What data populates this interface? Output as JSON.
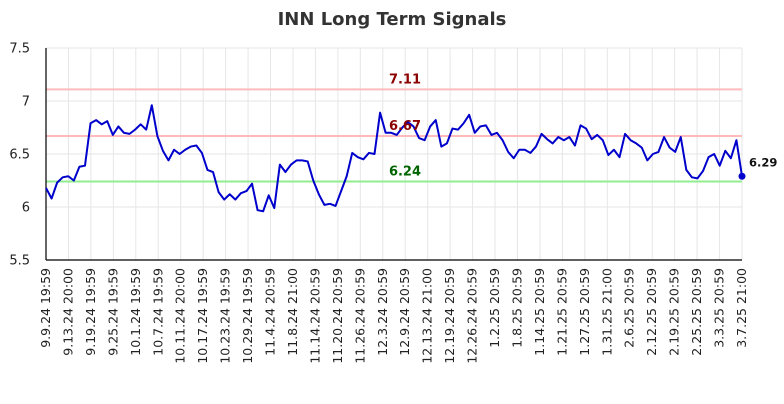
{
  "chart_data": {
    "type": "line",
    "title": "INN Long Term Signals",
    "xlabel": "",
    "ylabel": "",
    "ylim": [
      5.5,
      7.5
    ],
    "yticks": [
      "5.5",
      "6",
      "6.5",
      "7",
      "7.5"
    ],
    "grid": true,
    "x_tick_labels": [
      "9.9.24 19:59",
      "9.13.24 20:00",
      "9.19.24 19:59",
      "9.25.24 19:59",
      "10.1.24 19:59",
      "10.7.24 19:59",
      "10.11.24 20:00",
      "10.17.24 19:59",
      "10.23.24 19:59",
      "10.29.24 19:59",
      "11.4.24 20:59",
      "11.8.24 21:00",
      "11.14.24 20:59",
      "11.20.24 20:59",
      "11.26.24 20:59",
      "12.3.24 20:59",
      "12.9.24 20:59",
      "12.13.24 21:00",
      "12.19.24 20:59",
      "12.26.24 20:59",
      "1.2.25 20:59",
      "1.8.25 20:59",
      "1.14.25 20:59",
      "1.21.25 20:59",
      "1.27.25 20:59",
      "1.31.25 21:00",
      "2.6.25 20:59",
      "2.12.25 20:59",
      "2.19.25 20:59",
      "2.25.25 20:59",
      "3.3.25 20:59",
      "3.7.25 21:00"
    ],
    "reference_lines": [
      {
        "label": "7.11",
        "value": 7.11,
        "color": "#ffbbbb",
        "label_color": "#8b0000"
      },
      {
        "label": "6.67",
        "value": 6.67,
        "color": "#ffbbbb",
        "label_color": "#8b0000"
      },
      {
        "label": "6.24",
        "value": 6.24,
        "color": "#90ee90",
        "label_color": "#006400"
      }
    ],
    "last_value_label": "6.29",
    "series": [
      {
        "color": "#0000cc",
        "values": [
          6.18,
          6.08,
          6.23,
          6.28,
          6.29,
          6.25,
          6.38,
          6.39,
          6.79,
          6.82,
          6.78,
          6.81,
          6.68,
          6.76,
          6.7,
          6.69,
          6.73,
          6.78,
          6.73,
          6.96,
          6.67,
          6.53,
          6.44,
          6.54,
          6.5,
          6.54,
          6.57,
          6.58,
          6.51,
          6.35,
          6.33,
          6.14,
          6.07,
          6.12,
          6.07,
          6.13,
          6.15,
          6.22,
          5.97,
          5.96,
          6.11,
          5.99,
          6.4,
          6.33,
          6.4,
          6.44,
          6.44,
          6.43,
          6.25,
          6.12,
          6.02,
          6.03,
          6.01,
          6.15,
          6.29,
          6.51,
          6.47,
          6.45,
          6.51,
          6.5,
          6.89,
          6.7,
          6.7,
          6.68,
          6.75,
          6.8,
          6.76,
          6.65,
          6.63,
          6.76,
          6.82,
          6.57,
          6.6,
          6.74,
          6.73,
          6.79,
          6.87,
          6.7,
          6.76,
          6.77,
          6.68,
          6.7,
          6.63,
          6.52,
          6.46,
          6.54,
          6.54,
          6.51,
          6.57,
          6.69,
          6.64,
          6.6,
          6.66,
          6.63,
          6.66,
          6.58,
          6.77,
          6.74,
          6.64,
          6.68,
          6.63,
          6.49,
          6.54,
          6.47,
          6.69,
          6.63,
          6.6,
          6.56,
          6.44,
          6.5,
          6.52,
          6.66,
          6.56,
          6.52,
          6.66,
          6.35,
          6.28,
          6.27,
          6.34,
          6.47,
          6.5,
          6.39,
          6.53,
          6.46,
          6.63,
          6.29
        ]
      }
    ]
  }
}
